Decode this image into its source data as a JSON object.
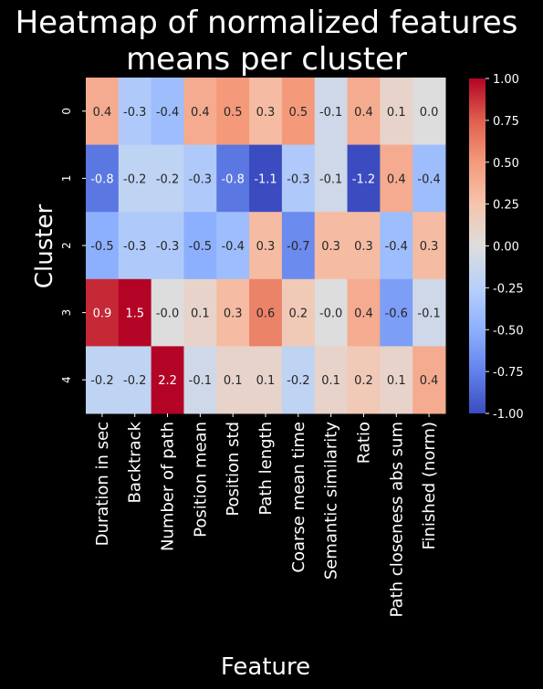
{
  "chart_data": {
    "type": "heatmap",
    "title_lines": [
      "Heatmap of normalized features",
      "means per cluster"
    ],
    "xlabel": "Feature",
    "ylabel": "Cluster",
    "colormap": "coolwarm",
    "vmin": -1.0,
    "vmax": 1.0,
    "columns": [
      "Duration in sec",
      "Backtrack",
      "Number of path",
      "Position mean",
      "Position std",
      "Path length",
      "Coarse mean time",
      "Semantic similarity",
      "Ratio",
      "Path closeness abs sum",
      "Finished (norm)"
    ],
    "rows": [
      "0",
      "1",
      "2",
      "3",
      "4"
    ],
    "values": [
      [
        0.4,
        -0.3,
        -0.4,
        0.4,
        0.5,
        0.3,
        0.5,
        -0.1,
        0.4,
        0.1,
        0.0
      ],
      [
        -0.8,
        -0.2,
        -0.2,
        -0.3,
        -0.8,
        -1.1,
        -0.3,
        -0.1,
        -1.2,
        0.4,
        -0.4
      ],
      [
        -0.5,
        -0.3,
        -0.3,
        -0.5,
        -0.4,
        0.3,
        -0.7,
        0.3,
        0.3,
        -0.4,
        0.3
      ],
      [
        0.9,
        1.5,
        -0.0,
        0.1,
        0.3,
        0.6,
        0.2,
        -0.0,
        0.4,
        -0.6,
        -0.1
      ],
      [
        -0.2,
        -0.2,
        2.2,
        -0.1,
        0.1,
        0.1,
        -0.2,
        0.1,
        0.2,
        0.1,
        0.4
      ]
    ],
    "labels": [
      [
        "0.4",
        "-0.3",
        "-0.4",
        "0.4",
        "0.5",
        "0.3",
        "0.5",
        "-0.1",
        "0.4",
        "0.1",
        "0.0"
      ],
      [
        "-0.8",
        "-0.2",
        "-0.2",
        "-0.3",
        "-0.8",
        "-1.1",
        "-0.3",
        "-0.1",
        "-1.2",
        "0.4",
        "-0.4"
      ],
      [
        "-0.5",
        "-0.3",
        "-0.3",
        "-0.5",
        "-0.4",
        "0.3",
        "-0.7",
        "0.3",
        "0.3",
        "-0.4",
        "0.3"
      ],
      [
        "0.9",
        "1.5",
        "-0.0",
        "0.1",
        "0.3",
        "0.6",
        "0.2",
        "-0.0",
        "0.4",
        "-0.6",
        "-0.1"
      ],
      [
        "-0.2",
        "-0.2",
        "2.2",
        "-0.1",
        "0.1",
        "0.1",
        "-0.2",
        "0.1",
        "0.2",
        "0.1",
        "0.4"
      ]
    ],
    "colorbar_ticks": [
      "-1.00",
      "-0.75",
      "-0.50",
      "-0.25",
      "0.00",
      "0.25",
      "0.50",
      "0.75",
      "1.00"
    ],
    "colorbar_tick_values": [
      -1.0,
      -0.75,
      -0.5,
      -0.25,
      0.0,
      0.25,
      0.5,
      0.75,
      1.0
    ],
    "background_color": "#000000",
    "text_color": "#ffffff"
  }
}
